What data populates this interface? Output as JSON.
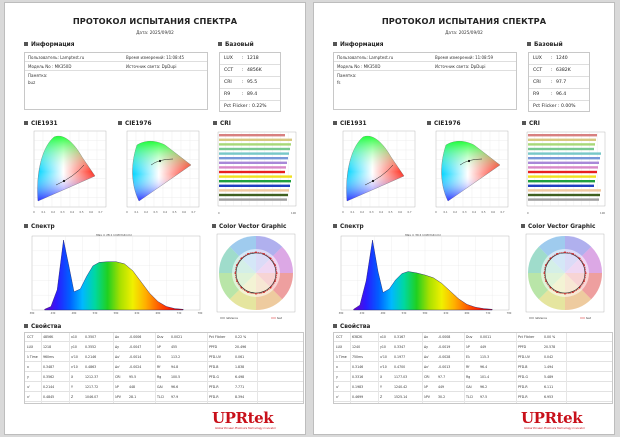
{
  "pages": [
    {
      "title": "ПРОТОКОЛ ИСПЫТАНИЯ СПЕКТРА",
      "date": "Дата: 2025/09/02",
      "sections": {
        "info": "Информация",
        "basic": "Базовый",
        "cie1931": "CIE1931",
        "cie1976": "CIE1976",
        "cri": "CRI",
        "spectrum": "Спектр",
        "color_vector": "Color Vector Graphic",
        "properties": "Свойства"
      },
      "info": {
        "user_label": "Пользователь: Lamptest.ru",
        "time_label": "Время измерений: 11:08:45",
        "model_label": "Модель No : MK350D",
        "source_label": "Источник света: DpDupi",
        "note_label": "Памятка:",
        "note_value": "buz"
      },
      "basic": {
        "rows": [
          {
            "key": "LUX",
            "value": "1218"
          },
          {
            "key": "CCT",
            "value": "4856K"
          },
          {
            "key": "CRI",
            "value": "95.5"
          },
          {
            "key": "R9",
            "value": "89.4"
          }
        ],
        "pct_flicker": "Pct Flicker : 0.22%"
      },
      "spectrum_caption": "Max = 28.1 (mW/m2/nm)",
      "cvg_legend": [
        "reference",
        "test"
      ],
      "props": [
        [
          "CCT",
          "4856K",
          "x10",
          "0.3507",
          "Δx",
          "-0.0006",
          "Duv",
          "0.0021",
          "Pct Flicker",
          "0.22 %"
        ],
        [
          "LUX",
          "1218",
          "y10",
          "0.3552",
          "Δy",
          "-0.0047",
          "λP",
          "455",
          "PPFD",
          "20.496"
        ],
        [
          "λ Time",
          "960ms",
          "u'10",
          "0.2146",
          "Δu'",
          "-0.0014",
          "Eλ",
          "113.2",
          "PFD-UV",
          "0.061"
        ],
        [
          "x",
          "0.3487",
          "v'10",
          "0.4863",
          "Δv'",
          "-0.0024",
          "Rf",
          "94.8",
          "PFD-B",
          "1.838"
        ],
        [
          "y",
          "0.3562",
          "X",
          "1212.37",
          "CRI",
          "95.5",
          "Rg",
          "100.5",
          "PFD-G",
          "6.498"
        ],
        [
          "u'",
          "0.2144",
          "Y",
          "1217.72",
          "λP",
          "448",
          "GAI",
          "96.6",
          "PFD-R",
          "7.771"
        ],
        [
          "v'",
          "0.4845",
          "Z",
          "1046.07",
          "λPV",
          "28.1",
          "TLCI",
          "97.9",
          "PFD-R",
          "8.394"
        ]
      ]
    },
    {
      "title": "ПРОТОКОЛ ИСПЫТАНИЯ СПЕКТРА",
      "date": "Дата: 2025/09/02",
      "sections": {
        "info": "Информация",
        "basic": "Базовый",
        "cie1931": "CIE1931",
        "cie1976": "CIE1976",
        "cri": "CRI",
        "spectrum": "Спектр",
        "color_vector": "Color Vector Graphic",
        "properties": "Свойства"
      },
      "info": {
        "user_label": "Пользователь: Lamptest.ru",
        "time_label": "Время измерений: 11:08:59",
        "model_label": "Модель No : MK350D",
        "source_label": "Источник света: DpDupi",
        "note_label": "Памятка:",
        "note_value": "fs"
      },
      "basic": {
        "rows": [
          {
            "key": "LUX",
            "value": "1240"
          },
          {
            "key": "CCT",
            "value": "6382K"
          },
          {
            "key": "CRI",
            "value": "97.7"
          },
          {
            "key": "R9",
            "value": "96.4"
          }
        ],
        "pct_flicker": "Pct Flicker : 0.00%"
      },
      "spectrum_caption": "Max = 30.2 (mW/m2/nm)",
      "cvg_legend": [
        "reference",
        "test"
      ],
      "props": [
        [
          "CCT",
          "6382K",
          "x10",
          "0.3167",
          "Δx",
          "-0.0008",
          "Duv",
          "0.0011",
          "Pct Flicker",
          "0.00 %"
        ],
        [
          "LUX",
          "1240",
          "y10",
          "0.3347",
          "Δy",
          "-0.0019",
          "λP",
          "449",
          "PPFD",
          "20.578"
        ],
        [
          "λ Time",
          "750ms",
          "u'10",
          "0.1977",
          "Δu'",
          "-0.0028",
          "Eλ",
          "115.3",
          "PFD-UV",
          "0.042"
        ],
        [
          "x",
          "0.3146",
          "v'10",
          "0.4700",
          "Δv'",
          "-0.0013",
          "Rf",
          "96.4",
          "PFD-B",
          "1.494"
        ],
        [
          "y",
          "0.3316",
          "X",
          "1177.03",
          "CRI",
          "97.7",
          "Rg",
          "101.4",
          "PFD-G",
          "5.489"
        ],
        [
          "u'",
          "0.1983",
          "Y",
          "1240.42",
          "λP",
          "449",
          "GAI",
          "96.2",
          "PFD-R",
          "6.111"
        ],
        [
          "v'",
          "0.4699",
          "Z",
          "1525.14",
          "λPV",
          "30.2",
          "TLCI",
          "97.5",
          "PFD-R",
          "6.953"
        ]
      ]
    }
  ],
  "chart_data": [
    {
      "type": "area",
      "title": "Спектр",
      "series": [
        {
          "values": [
            0.01,
            0.05,
            0.29,
            1.0,
            0.62,
            0.26,
            0.3,
            0.48,
            0.63,
            0.68,
            0.69,
            0.69,
            0.66,
            0.56,
            0.4,
            0.24,
            0.12,
            0.05,
            0.02,
            0.01
          ]
        }
      ],
      "x": [
        410,
        425,
        440,
        455,
        468,
        480,
        495,
        510,
        525,
        540,
        560,
        580,
        600,
        620,
        640,
        660,
        680,
        700,
        720,
        740
      ]
    },
    {
      "type": "area",
      "title": "Спектр",
      "series": [
        {
          "values": [
            0.01,
            0.07,
            0.42,
            1.0,
            0.55,
            0.25,
            0.3,
            0.43,
            0.52,
            0.55,
            0.53,
            0.5,
            0.46,
            0.38,
            0.27,
            0.16,
            0.08,
            0.04,
            0.02,
            0.01
          ]
        }
      ],
      "x": [
        410,
        425,
        440,
        455,
        468,
        480,
        495,
        510,
        525,
        540,
        560,
        580,
        600,
        620,
        640,
        660,
        680,
        700,
        720,
        740
      ]
    }
  ],
  "logo_text": "UPRtek",
  "logo_tagline": "Global Pioneer Photonics Technology Innovator"
}
